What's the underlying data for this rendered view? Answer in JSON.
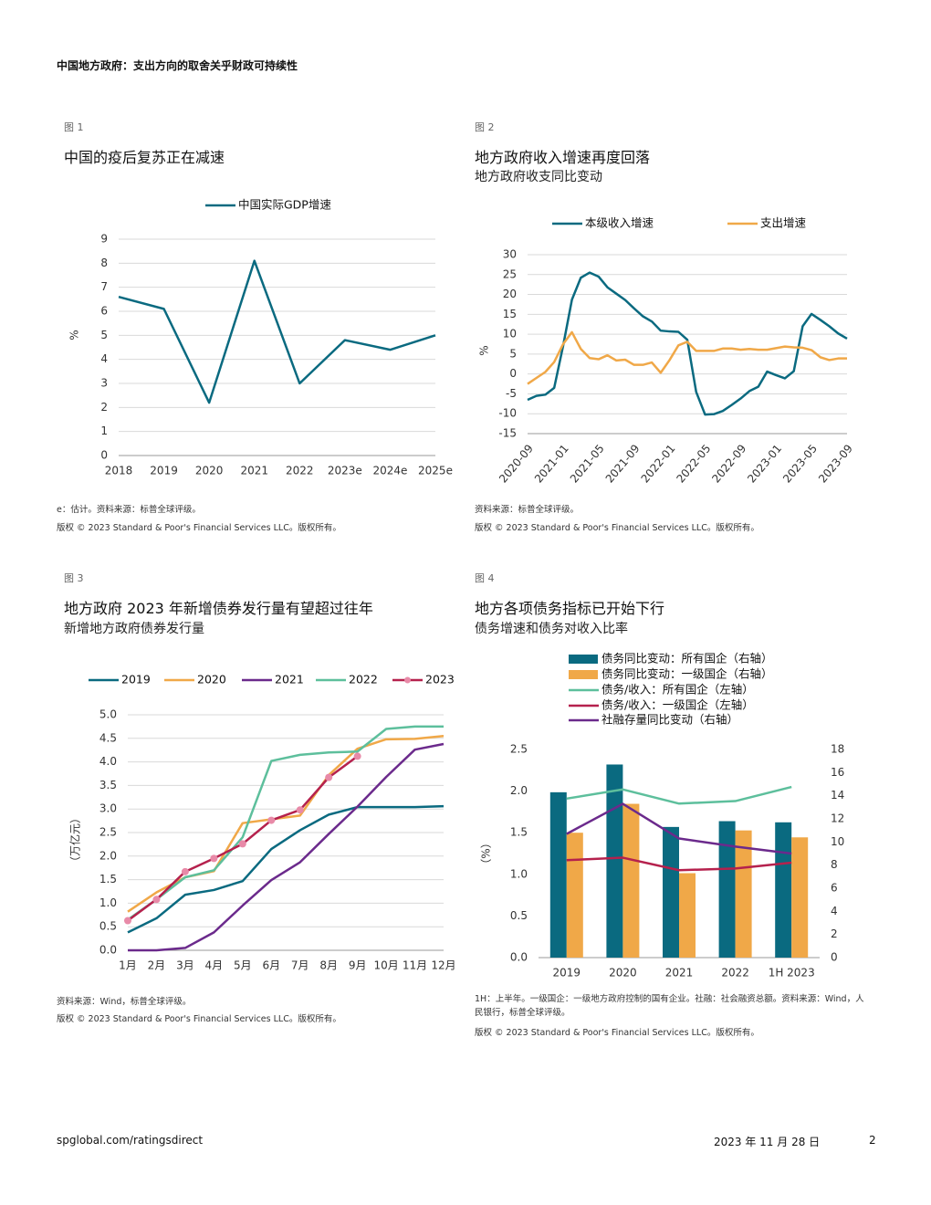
{
  "header": {
    "title": "中国地方政府：支出方向的取舍关乎财政可持续性"
  },
  "chart_data": [
    {
      "type": "line",
      "label": "图 1",
      "title": "中国的疫后复苏正在减速",
      "categories": [
        "2018",
        "2019",
        "2020",
        "2021",
        "2022",
        "2023e",
        "2024e",
        "2025e"
      ],
      "series": [
        {
          "name": "中国实际GDP增速",
          "color": "#0a6a80",
          "values": [
            6.6,
            6.1,
            2.2,
            8.1,
            3.0,
            4.8,
            4.4,
            5.0
          ]
        }
      ],
      "ylabel": "%",
      "ylim": [
        0,
        9
      ],
      "yticks": [
        0,
        1,
        2,
        3,
        4,
        5,
        6,
        7,
        8,
        9
      ],
      "grid": true,
      "note": "e：估计。资料来源：标普全球评级。",
      "copyright": "版权 © 2023 Standard & Poor's Financial Services LLC。版权所有。"
    },
    {
      "type": "line",
      "label": "图 2",
      "title": "地方政府收入增速再度回落",
      "subtitle": "地方政府收支同比变动",
      "categories": [
        "2020-09",
        null,
        null,
        null,
        "2021-01",
        null,
        null,
        null,
        "2021-05",
        null,
        null,
        null,
        "2021-09",
        null,
        null,
        null,
        "2022-01",
        null,
        null,
        null,
        "2022-05",
        null,
        null,
        null,
        "2022-09",
        null,
        null,
        null,
        "2023-01",
        null,
        null,
        null,
        "2023-05",
        null,
        null,
        null,
        "2023-09"
      ],
      "series": [
        {
          "name": "本级收入增速",
          "color": "#0a6a80",
          "values": [
            -6.5,
            -5.5,
            -5.2,
            -3.5,
            7,
            18.7,
            24.2,
            25.5,
            24.5,
            21.8,
            20.2,
            18.6,
            16.5,
            14.5,
            13.2,
            10.9,
            10.7,
            10.6,
            8.6,
            -4.5,
            -10.2,
            -10.1,
            -9.3,
            -7.8,
            -6.2,
            -4.3,
            -3.2,
            0.6,
            -0.3,
            -1.1,
            0.7,
            12,
            15.1,
            13.6,
            12,
            10.2,
            8.9
          ]
        },
        {
          "name": "支出增速",
          "color": "#f0a848",
          "values": [
            -2.5,
            -1.0,
            0.5,
            3,
            7.5,
            10.5,
            6.3,
            4,
            3.7,
            4.7,
            3.4,
            3.6,
            2.3,
            2.3,
            2.9,
            0.3,
            3.5,
            7.2,
            8.1,
            5.8,
            5.8,
            5.8,
            6.4,
            6.4,
            6.1,
            6.3,
            6.1,
            6.1,
            6.5,
            6.9,
            6.7,
            6.6,
            6,
            4.2,
            3.5,
            3.9,
            3.9
          ]
        }
      ],
      "ylabel": "%",
      "ylim": [
        -15,
        30
      ],
      "yticks": [
        -15,
        -10,
        -5,
        0,
        5,
        10,
        15,
        20,
        25,
        30
      ],
      "grid": true,
      "note": "资料来源：标普全球评级。",
      "copyright": "版权 © 2023 Standard & Poor's Financial Services LLC。版权所有。"
    },
    {
      "type": "line",
      "label": "图 3",
      "title": "地方政府 2023 年新增债券发行量有望超过往年",
      "subtitle": "新增地方政府债券发行量",
      "categories": [
        "1月",
        "2月",
        "3月",
        "4月",
        "5月",
        "6月",
        "7月",
        "8月",
        "9月",
        "10月",
        "11月",
        "12月"
      ],
      "series": [
        {
          "name": "2019",
          "color": "#0a6a80",
          "values": [
            0.38,
            0.68,
            1.18,
            1.28,
            1.47,
            2.15,
            2.55,
            2.88,
            3.04,
            3.04,
            3.04,
            3.06
          ]
        },
        {
          "name": "2020",
          "color": "#f0a848",
          "values": [
            0.82,
            1.23,
            1.55,
            1.68,
            2.7,
            2.78,
            2.86,
            3.72,
            4.28,
            4.48,
            4.49,
            4.55
          ]
        },
        {
          "name": "2021",
          "color": "#6b2a8c",
          "values": [
            0.0,
            0.0,
            0.05,
            0.38,
            0.95,
            1.49,
            1.87,
            2.47,
            3.05,
            3.68,
            4.26,
            4.38
          ]
        },
        {
          "name": "2022",
          "color": "#5dbf9c",
          "values": [
            0.65,
            1.08,
            1.55,
            1.7,
            2.4,
            4.02,
            4.15,
            4.2,
            4.22,
            4.7,
            4.75,
            4.75
          ]
        },
        {
          "name": "2023",
          "color": "#b5214d",
          "marker": true,
          "marker_color": "#e88aa8",
          "values": [
            0.63,
            1.08,
            1.67,
            1.95,
            2.26,
            2.76,
            2.98,
            3.67,
            4.12,
            null,
            null,
            null
          ]
        }
      ],
      "ylabel": "（万亿元）",
      "ylim": [
        0,
        5
      ],
      "yticks": [
        {
          "value": 0,
          "label": "0.0"
        },
        0.5,
        {
          "value": 1,
          "label": "1.0"
        },
        1.5,
        {
          "value": 2,
          "label": "2.0"
        },
        2.5,
        {
          "value": 3,
          "label": "3.0"
        },
        3.5,
        {
          "value": 4,
          "label": "4.0"
        },
        4.5,
        {
          "value": 5,
          "label": "5.0"
        }
      ],
      "grid": true,
      "note": "资料来源：Wind，标普全球评级。",
      "copyright": "版权 © 2023 Standard & Poor's Financial Services LLC。版权所有。"
    },
    {
      "type": "combo",
      "label": "图 4",
      "title": "地方各项债务指标已开始下行",
      "subtitle": "债务增速和债务对收入比率",
      "categories": [
        "2019",
        "2020",
        "2021",
        "2022",
        "1H 2023"
      ],
      "series": [
        {
          "name": "债务同比变动：所有国企（右轴）",
          "type": "bar",
          "axis": "y2",
          "color": "#0a6a80",
          "values": [
            14.3,
            16.7,
            11.3,
            11.8,
            11.7
          ]
        },
        {
          "name": "债务同比变动：一级国企（右轴）",
          "type": "bar",
          "axis": "y2",
          "color": "#f0a848",
          "values": [
            10.8,
            13.3,
            7.3,
            11.0,
            10.4
          ]
        },
        {
          "name": "债务/收入：所有国企（左轴）",
          "type": "line",
          "color": "#5dbf9c",
          "values": [
            1.91,
            2.02,
            1.85,
            1.88,
            2.05
          ]
        },
        {
          "name": "债务/收入：一级国企（左轴）",
          "type": "line",
          "color": "#b5214d",
          "values": [
            1.17,
            1.2,
            1.05,
            1.07,
            1.14
          ]
        },
        {
          "name": "社融存量同比变动（右轴）",
          "type": "line",
          "axis": "y2",
          "color": "#6b2a8c",
          "values": [
            10.7,
            13.3,
            10.3,
            9.6,
            9.0
          ]
        }
      ],
      "ylabel": "（%）",
      "ylim": [
        0,
        2.5
      ],
      "yticks": [
        {
          "value": 0,
          "label": "0.0"
        },
        0.5,
        {
          "value": 1,
          "label": "1.0"
        },
        1.5,
        {
          "value": 2,
          "label": "2.0"
        },
        2.5
      ],
      "y2lim": [
        0,
        18
      ],
      "y2ticks": [
        0,
        2,
        4,
        6,
        8,
        10,
        12,
        14,
        16,
        18
      ],
      "grid": false,
      "note": "1H：上半年。一级国企：一级地方政府控制的国有企业。社融：社会融资总额。资料来源：Wind，人民银行，标普全球评级。",
      "copyright": "版权 © 2023 Standard & Poor's Financial Services LLC。版权所有。"
    }
  ],
  "footer": {
    "url": "spglobal.com/ratingsdirect",
    "date": "2023 年 11 月 28 日",
    "page": "2"
  }
}
